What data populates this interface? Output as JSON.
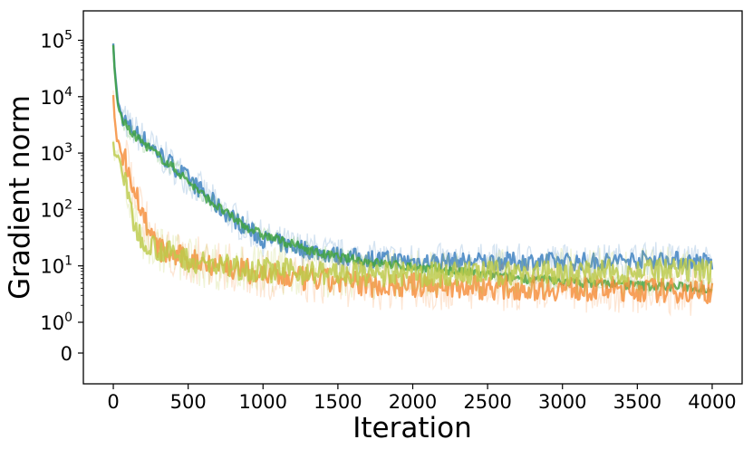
{
  "chart_data": {
    "type": "line",
    "title": "",
    "xlabel": "Iteration",
    "ylabel": "Gradient norm",
    "yscale": "symlog",
    "xlim": [
      -200,
      4200
    ],
    "x_ticks": [
      0,
      500,
      1000,
      1500,
      2000,
      2500,
      3000,
      3500,
      4000
    ],
    "x_tick_labels": [
      "0",
      "500",
      "1000",
      "1500",
      "2000",
      "2500",
      "3000",
      "3500",
      "4000"
    ],
    "y_ticks": [
      {
        "value": 100000,
        "base": "10",
        "exp": "5"
      },
      {
        "value": 10000,
        "base": "10",
        "exp": "4"
      },
      {
        "value": 1000,
        "base": "10",
        "exp": "3"
      },
      {
        "value": 100,
        "base": "10",
        "exp": "2"
      },
      {
        "value": 10,
        "base": "10",
        "exp": "1"
      },
      {
        "value": 1,
        "base": "10",
        "exp": "0"
      },
      {
        "value": 0,
        "base": "0",
        "exp": ""
      }
    ],
    "grid": false,
    "legend": "none",
    "series": [
      {
        "name": "blue",
        "color": "#3a7fbf",
        "x": [
          0,
          10,
          30,
          60,
          100,
          200,
          300,
          400,
          500,
          600,
          700,
          800,
          900,
          1000,
          1200,
          1400,
          1500,
          1800,
          2000,
          2200,
          2500,
          2800,
          3000,
          3300,
          3500,
          3700,
          3850,
          3950,
          4000
        ],
        "y": [
          80000,
          30000,
          8000,
          4500,
          3000,
          1800,
          1000,
          600,
          350,
          200,
          110,
          70,
          45,
          30,
          22,
          17,
          15,
          13,
          12,
          12,
          12,
          12,
          12,
          12,
          13,
          13,
          12,
          12,
          11
        ]
      },
      {
        "name": "green",
        "color": "#3fa23f",
        "x": [
          0,
          10,
          30,
          60,
          100,
          200,
          300,
          400,
          500,
          600,
          700,
          800,
          900,
          1000,
          1200,
          1400,
          1600,
          1800,
          2000,
          2200,
          2400,
          2600,
          2800,
          3000,
          3200,
          3500,
          3700,
          3850,
          3950,
          4000
        ],
        "y": [
          80000,
          25000,
          7000,
          4000,
          2600,
          1500,
          900,
          550,
          320,
          180,
          110,
          70,
          48,
          35,
          24,
          16,
          13,
          11,
          9.5,
          8.5,
          7.5,
          6.5,
          5.8,
          5.3,
          5,
          4.5,
          4.3,
          4.2,
          4,
          3.8
        ]
      },
      {
        "name": "orange",
        "color": "#f58e3a",
        "x": [
          0,
          10,
          30,
          60,
          100,
          150,
          200,
          250,
          300,
          400,
          500,
          600,
          700,
          800,
          900,
          1000,
          1200,
          1400,
          1600,
          1800,
          2000,
          2500,
          3000,
          3500,
          3800,
          4000
        ],
        "y": [
          12000,
          3000,
          1500,
          1000,
          550,
          200,
          80,
          35,
          20,
          15,
          13,
          12,
          11,
          9,
          8,
          7,
          6,
          5.5,
          5,
          4.5,
          4.5,
          4.2,
          4,
          3.8,
          3.6,
          3.5
        ]
      },
      {
        "name": "yellow-green",
        "color": "#bccb4a",
        "x": [
          0,
          10,
          30,
          60,
          100,
          150,
          200,
          300,
          400,
          500,
          600,
          700,
          800,
          900,
          1000,
          1200,
          1400,
          1600,
          1800,
          2000,
          2200,
          2500,
          3000,
          3500,
          3800,
          4000
        ],
        "y": [
          1500,
          800,
          1000,
          500,
          150,
          45,
          30,
          20,
          16,
          13,
          11,
          10,
          9.5,
          9,
          8.5,
          8,
          7.5,
          7,
          7,
          7,
          7,
          7.5,
          7.5,
          8,
          8,
          8
        ]
      }
    ]
  }
}
